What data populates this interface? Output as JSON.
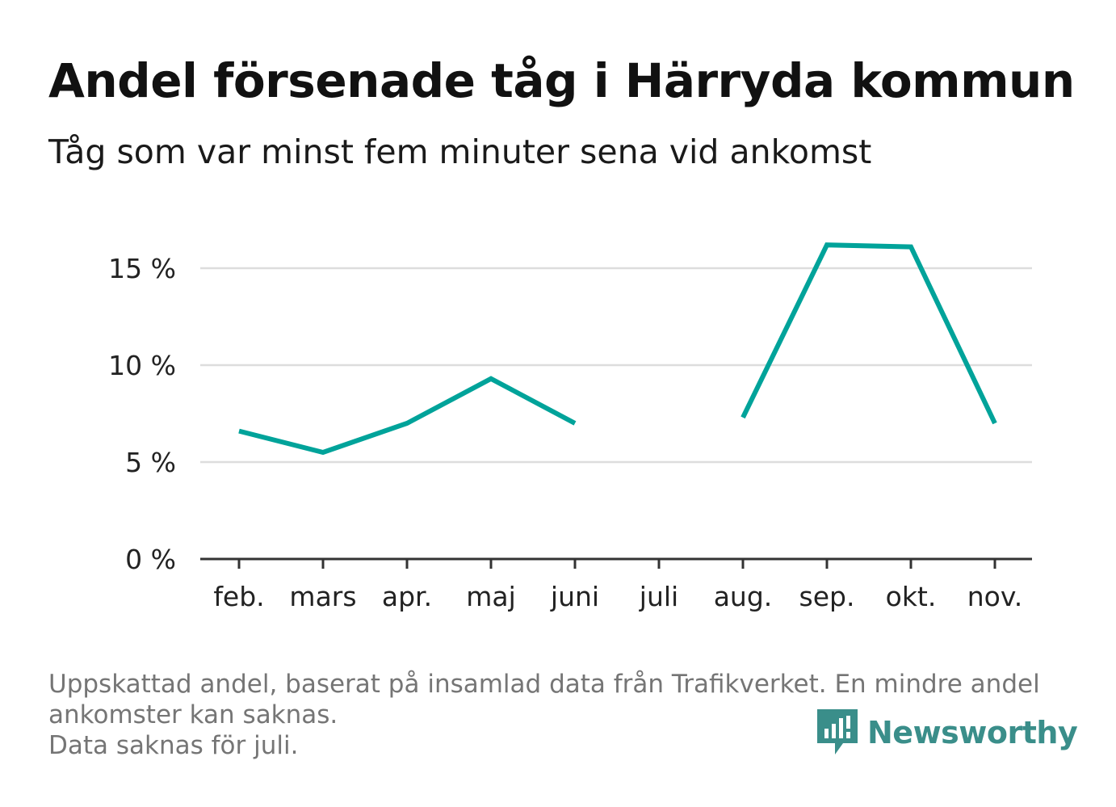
{
  "title": "Andel försenade tåg i Härryda kommun",
  "subtitle": "Tåg som var minst fem minuter sena vid ankomst",
  "footnote": {
    "line1": "Uppskattad andel, baserat på insamlad data från Trafikverket. En mindre andel",
    "line2": "ankomster kan saknas.",
    "line3": "Data saknas för juli."
  },
  "brand": {
    "name": "Newsworthy",
    "icon": "bar-chart-speech-bubble-icon",
    "color": "#3a8e8a"
  },
  "chart_data": {
    "type": "line",
    "categories": [
      "feb.",
      "mars",
      "apr.",
      "maj",
      "juni",
      "juli",
      "aug.",
      "sep.",
      "okt.",
      "nov."
    ],
    "series": [
      {
        "values": [
          6.6,
          5.5,
          7.0,
          9.3,
          7.0,
          null,
          7.3,
          16.2,
          16.1,
          7.0
        ],
        "color": "#00a39a"
      }
    ],
    "yticks": [
      0,
      5,
      10,
      15
    ],
    "ytick_labels": [
      "0 %",
      "5 %",
      "10 %",
      "15 %"
    ],
    "ylim": [
      0,
      18
    ],
    "grid": true,
    "xlabel": "",
    "ylabel": ""
  }
}
